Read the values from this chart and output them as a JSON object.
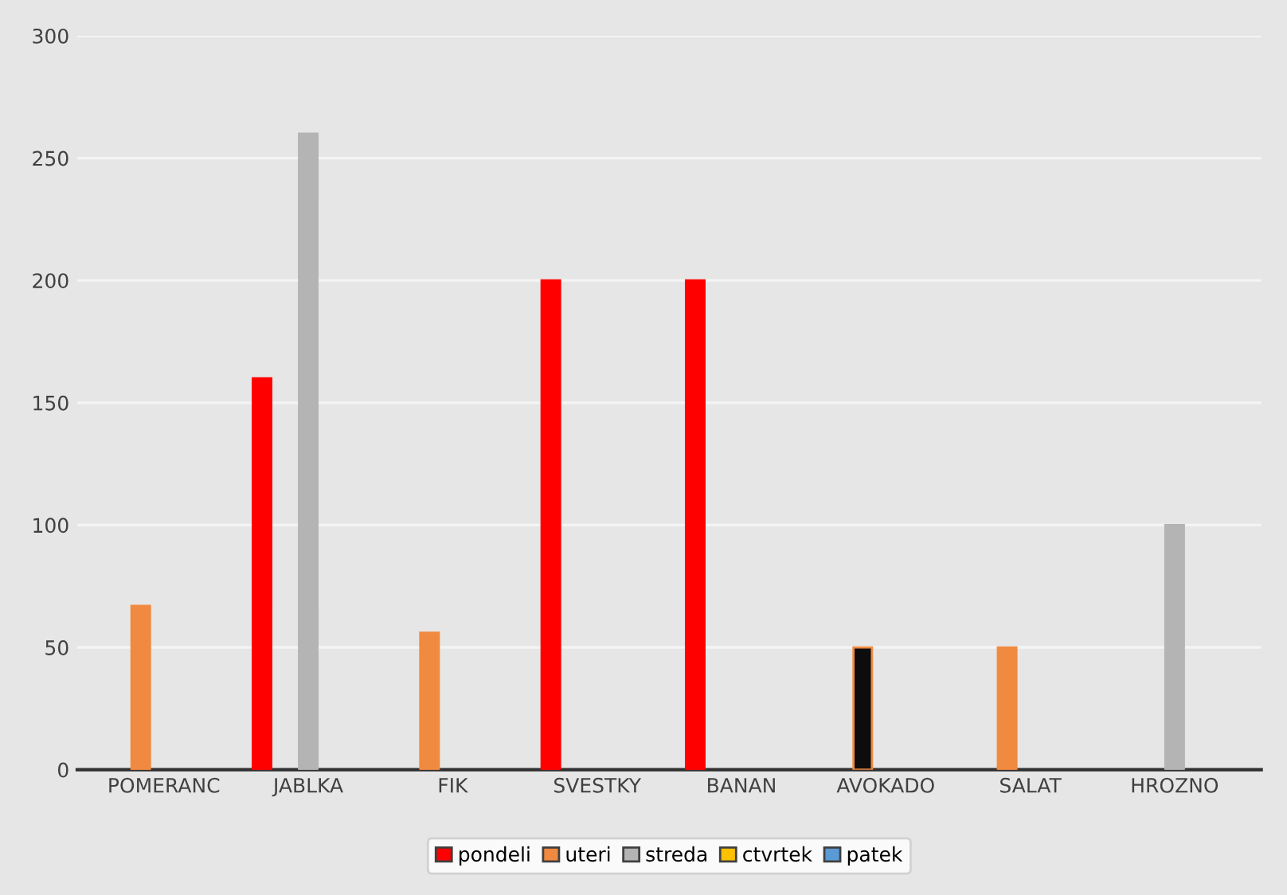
{
  "chart_data": {
    "type": "bar",
    "categories": [
      "POMERANC",
      "JABLKA",
      "FIK",
      "SVESTKY",
      "BANAN",
      "AVOKADO",
      "SALAT",
      "HROZNO"
    ],
    "series": [
      {
        "name": "pondeli",
        "color": "#ff0000",
        "values": [
          null,
          160,
          null,
          200,
          200,
          null,
          null,
          null
        ]
      },
      {
        "name": "uteri",
        "color": "#f08a40",
        "colors": [
          "#f08a40",
          "#f08a40",
          "#f08a40",
          "#f08a40",
          "#f08a40",
          "#0d0d0d",
          "#f08a40",
          "#f08a40"
        ],
        "values": [
          67,
          null,
          56,
          null,
          null,
          50,
          50,
          null
        ]
      },
      {
        "name": "streda",
        "color": "#b4b4b4",
        "values": [
          null,
          260,
          null,
          null,
          null,
          null,
          null,
          100
        ]
      },
      {
        "name": "ctvrtek",
        "color": "#ffc000",
        "values": [
          null,
          null,
          null,
          null,
          null,
          null,
          null,
          null
        ]
      },
      {
        "name": "patek",
        "color": "#5b9bd5",
        "values": [
          null,
          null,
          null,
          null,
          null,
          null,
          null,
          null
        ]
      }
    ],
    "ylim": [
      0,
      300
    ],
    "yticks": [
      0,
      50,
      100,
      150,
      200,
      250,
      300
    ],
    "grid": "y",
    "legend": "bottom"
  }
}
